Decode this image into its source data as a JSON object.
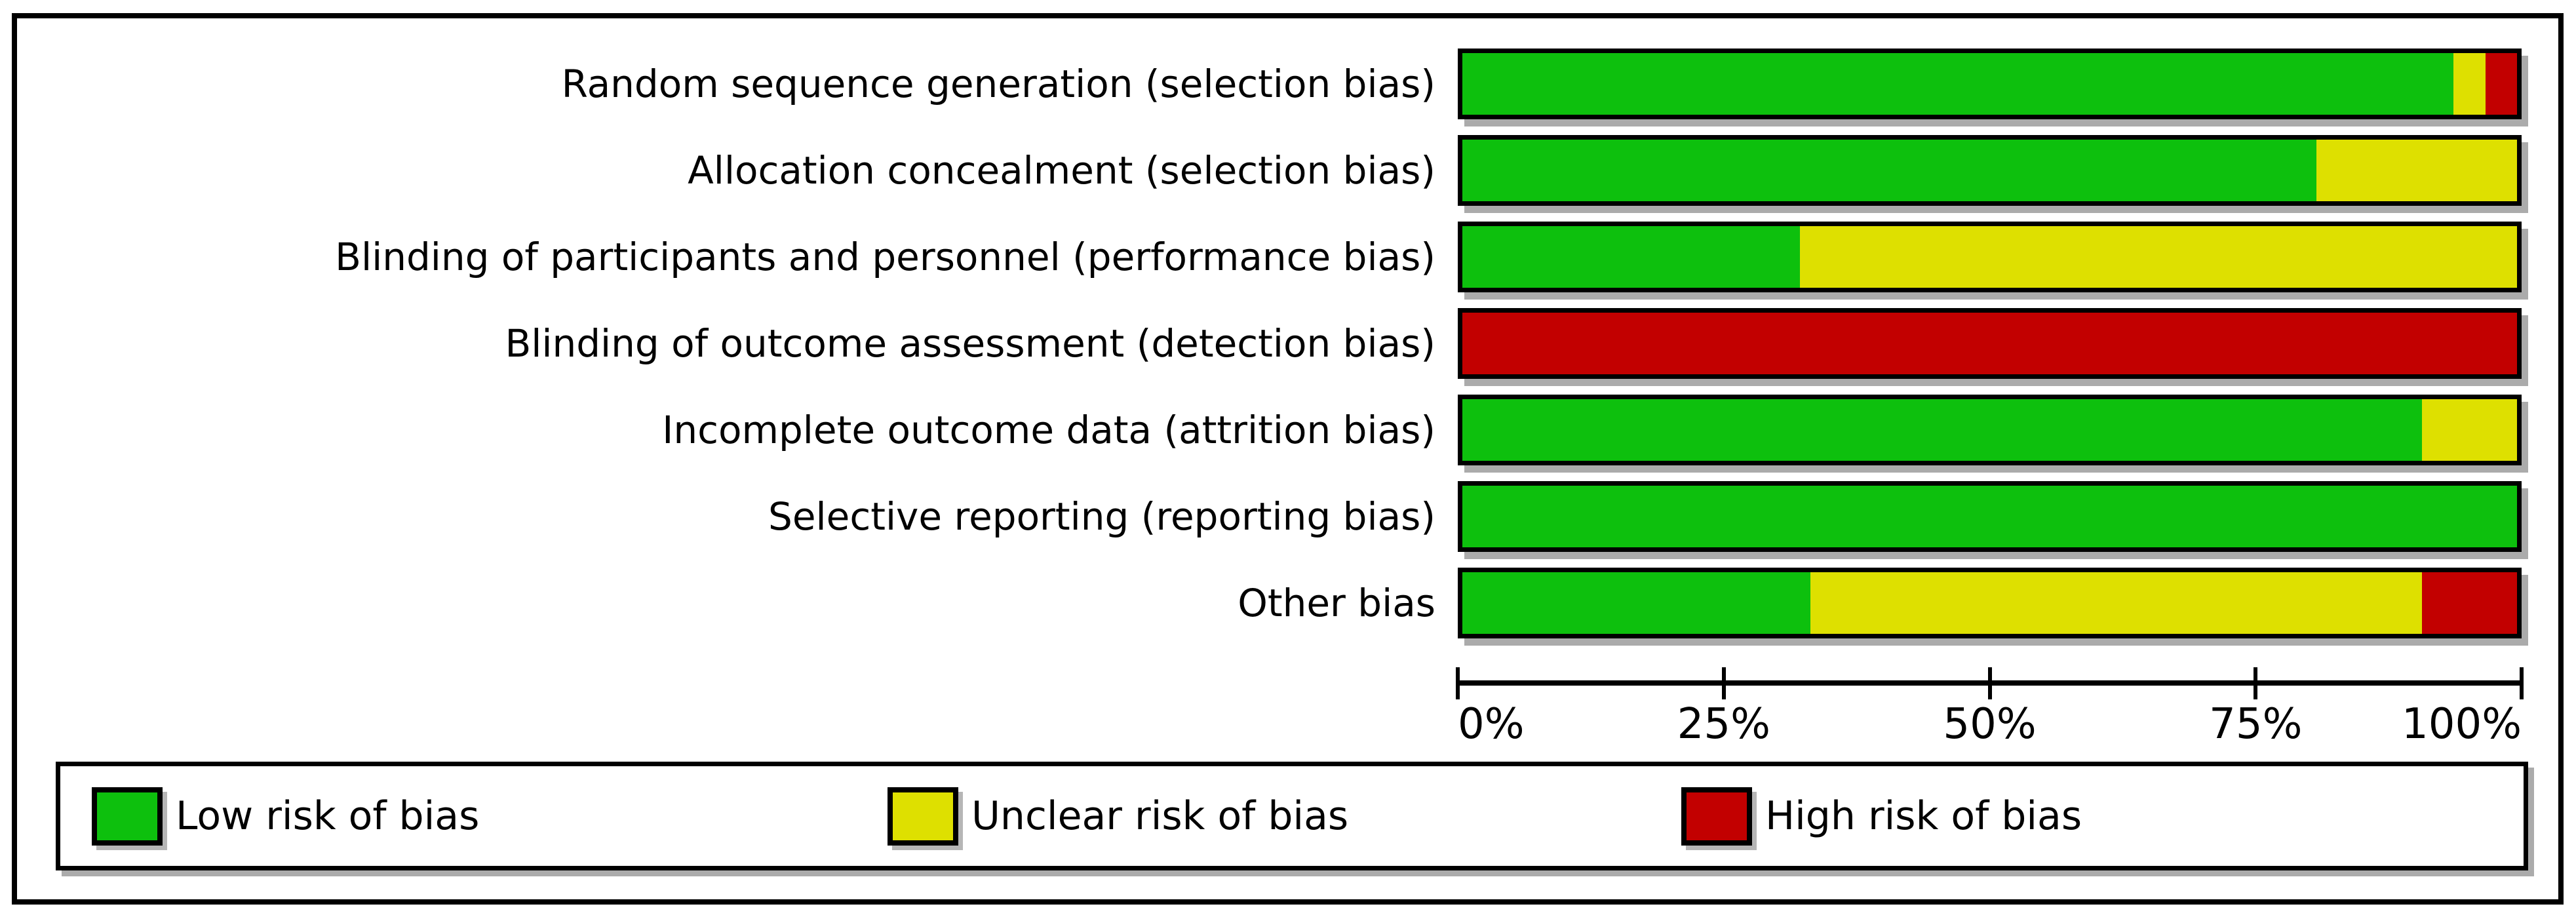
{
  "figure": {
    "background": "#ffffff",
    "border_color": "#000000"
  },
  "colors": {
    "low": "#0dc00d",
    "unclear": "#dee000",
    "high": "#c20000",
    "shadow": "#ababab",
    "text": "#000000"
  },
  "chart_data": {
    "type": "bar",
    "orientation": "horizontal",
    "stacked": true,
    "title": "",
    "xlabel": "",
    "ylabel": "",
    "xlim": [
      0,
      100
    ],
    "grid": false,
    "x_ticks": [
      "0%",
      "25%",
      "50%",
      "75%",
      "100%"
    ],
    "x_tick_values": [
      0,
      25,
      50,
      75,
      100
    ],
    "categories": [
      "Random sequence generation (selection bias)",
      "Allocation concealment (selection bias)",
      "Blinding of participants and personnel (performance bias)",
      "Blinding of outcome assessment (detection bias)",
      "Incomplete outcome data (attrition bias)",
      "Selective reporting (reporting bias)",
      "Other bias"
    ],
    "series": [
      {
        "name": "Low risk of bias",
        "key": "low",
        "values": [
          94,
          81,
          32,
          0,
          91,
          100,
          33
        ]
      },
      {
        "name": "Unclear risk of bias",
        "key": "unclear",
        "values": [
          3,
          19,
          68,
          0,
          9,
          0,
          58
        ]
      },
      {
        "name": "High risk of bias",
        "key": "high",
        "values": [
          3,
          0,
          0,
          100,
          0,
          0,
          9
        ]
      }
    ],
    "legend_position": "bottom"
  },
  "layout_rows": {
    "first_top": 74,
    "pitch": 132
  },
  "legend_item_offsets": [
    48,
    1262,
    2473
  ]
}
